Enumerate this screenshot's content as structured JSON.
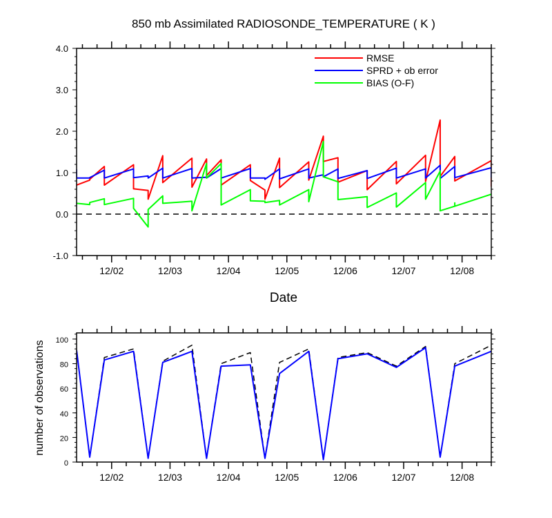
{
  "chart_data": [
    {
      "type": "line",
      "title": "850 mb Assimilated RADIOSONDE_TEMPERATURE ( K )",
      "xlabel": "Date",
      "ylabel": "",
      "ylim": [
        -1.0,
        4.0
      ],
      "yticks": [
        "-1.0",
        "0.0",
        "1.0",
        "2.0",
        "3.0",
        "4.0"
      ],
      "xlim": [
        1.4,
        8.5
      ],
      "xtick_positions": [
        2,
        3,
        4,
        5,
        6,
        7,
        8
      ],
      "xtick_labels": [
        "12/02",
        "12/03",
        "12/04",
        "12/05",
        "12/06",
        "12/07",
        "12/08"
      ],
      "reference_line": {
        "y": 0.0,
        "style": "dashed",
        "color": "#000000"
      },
      "legend": {
        "placement": "top-right"
      },
      "series": [
        {
          "name": "RMSE",
          "color": "#ff0000",
          "points": [
            [
              1.4,
              0.7
            ],
            [
              1.625,
              0.82
            ],
            [
              1.625,
              0.84
            ],
            [
              1.875,
              1.15
            ],
            [
              1.875,
              0.7
            ],
            [
              2.375,
              1.19
            ],
            [
              2.375,
              0.61
            ],
            [
              2.625,
              0.57
            ],
            [
              2.625,
              0.36
            ],
            [
              2.875,
              1.41
            ],
            [
              2.875,
              0.76
            ],
            [
              3.375,
              1.35
            ],
            [
              3.375,
              0.65
            ],
            [
              3.625,
              1.33
            ],
            [
              3.625,
              0.93
            ],
            [
              3.875,
              1.31
            ],
            [
              3.875,
              0.7
            ],
            [
              4.375,
              1.19
            ],
            [
              4.375,
              0.81
            ],
            [
              4.625,
              0.58
            ],
            [
              4.625,
              0.36
            ],
            [
              4.875,
              1.35
            ],
            [
              4.875,
              0.64
            ],
            [
              5.375,
              1.26
            ],
            [
              5.375,
              0.82
            ],
            [
              5.625,
              1.88
            ],
            [
              5.625,
              1.27
            ],
            [
              5.875,
              1.36
            ],
            [
              5.875,
              0.77
            ],
            [
              6.375,
              1.05
            ],
            [
              6.375,
              0.59
            ],
            [
              6.875,
              1.27
            ],
            [
              6.875,
              0.73
            ],
            [
              7.375,
              1.42
            ],
            [
              7.375,
              0.79
            ],
            [
              7.625,
              2.27
            ],
            [
              7.625,
              0.91
            ],
            [
              7.875,
              1.39
            ],
            [
              7.875,
              0.8
            ],
            [
              8.5,
              1.29
            ],
            [
              8.5,
              0.66
            ]
          ]
        },
        {
          "name": "SPRD + ob error",
          "color": "#0000ff",
          "points": [
            [
              1.4,
              1.08
            ],
            [
              1.4,
              0.87
            ],
            [
              1.625,
              0.87
            ],
            [
              1.625,
              0.88
            ],
            [
              1.875,
              1.06
            ],
            [
              1.875,
              0.87
            ],
            [
              2.375,
              1.09
            ],
            [
              2.375,
              0.88
            ],
            [
              2.625,
              0.92
            ],
            [
              2.625,
              0.87
            ],
            [
              2.875,
              1.11
            ],
            [
              2.875,
              0.87
            ],
            [
              3.375,
              1.1
            ],
            [
              3.375,
              0.87
            ],
            [
              3.625,
              0.89
            ],
            [
              3.625,
              0.87
            ],
            [
              3.875,
              1.1
            ],
            [
              3.875,
              0.87
            ],
            [
              4.375,
              1.1
            ],
            [
              4.375,
              0.87
            ],
            [
              4.625,
              0.87
            ],
            [
              4.625,
              0.84
            ],
            [
              4.875,
              1.09
            ],
            [
              4.875,
              0.85
            ],
            [
              5.375,
              1.09
            ],
            [
              5.375,
              0.87
            ],
            [
              5.625,
              0.95
            ],
            [
              5.625,
              0.9
            ],
            [
              5.875,
              1.09
            ],
            [
              5.875,
              0.86
            ],
            [
              6.375,
              1.05
            ],
            [
              6.375,
              0.86
            ],
            [
              6.875,
              1.11
            ],
            [
              6.875,
              0.87
            ],
            [
              7.375,
              1.09
            ],
            [
              7.375,
              0.87
            ],
            [
              7.625,
              1.18
            ],
            [
              7.625,
              0.86
            ],
            [
              7.875,
              1.15
            ],
            [
              7.875,
              0.88
            ],
            [
              8.5,
              1.12
            ],
            [
              8.5,
              0.88
            ]
          ]
        },
        {
          "name": "BIAS (O-F)",
          "color": "#00ff00",
          "points": [
            [
              1.4,
              0.26
            ],
            [
              1.625,
              0.23
            ],
            [
              1.625,
              0.28
            ],
            [
              1.875,
              0.37
            ],
            [
              1.875,
              0.23
            ],
            [
              2.375,
              0.38
            ],
            [
              2.375,
              0.14
            ],
            [
              2.625,
              -0.31
            ],
            [
              2.625,
              0.11
            ],
            [
              2.875,
              0.44
            ],
            [
              2.875,
              0.26
            ],
            [
              3.375,
              0.31
            ],
            [
              3.375,
              0.08
            ],
            [
              3.625,
              1.22
            ],
            [
              3.625,
              0.87
            ],
            [
              3.875,
              1.22
            ],
            [
              3.875,
              0.22
            ],
            [
              4.375,
              0.59
            ],
            [
              4.375,
              0.32
            ],
            [
              4.625,
              0.31
            ],
            [
              4.625,
              0.28
            ],
            [
              4.875,
              0.33
            ],
            [
              4.875,
              0.22
            ],
            [
              5.375,
              0.59
            ],
            [
              5.375,
              0.3
            ],
            [
              5.625,
              1.75
            ],
            [
              5.625,
              0.9
            ],
            [
              5.875,
              0.78
            ],
            [
              5.875,
              0.35
            ],
            [
              6.375,
              0.42
            ],
            [
              6.375,
              0.16
            ],
            [
              6.875,
              0.51
            ],
            [
              6.875,
              0.17
            ],
            [
              7.375,
              0.76
            ],
            [
              7.375,
              0.36
            ],
            [
              7.625,
              1.04
            ],
            [
              7.625,
              0.08
            ],
            [
              7.875,
              0.19
            ],
            [
              7.875,
              0.27
            ],
            [
              7.875,
              0.19
            ],
            [
              8.5,
              0.48
            ]
          ]
        }
      ]
    },
    {
      "type": "line",
      "title": "",
      "xlabel": "",
      "ylabel": "number of observations",
      "ylim": [
        0,
        105
      ],
      "yticks": [
        "0",
        "20",
        "40",
        "60",
        "80",
        "100"
      ],
      "xlim": [
        1.4,
        8.5
      ],
      "xtick_positions": [
        2,
        3,
        4,
        5,
        6,
        7,
        8
      ],
      "xtick_labels": [
        "12/02",
        "12/03",
        "12/04",
        "12/05",
        "12/06",
        "12/07",
        "12/08"
      ],
      "series": [
        {
          "color": "#0000ff",
          "style": "solid",
          "x": [
            1.4,
            1.625,
            1.875,
            2.375,
            2.625,
            2.875,
            3.375,
            3.625,
            3.875,
            4.375,
            4.625,
            4.875,
            5.375,
            5.625,
            5.875,
            6.375,
            6.875,
            7.375,
            7.625,
            7.875,
            8.5
          ],
          "y": [
            91,
            4,
            83,
            90,
            3,
            81,
            90,
            3,
            78,
            79,
            3,
            72,
            90,
            2,
            84,
            88,
            77,
            93,
            4,
            78,
            90
          ]
        },
        {
          "color": "#000000",
          "style": "dashed",
          "x": [
            1.4,
            1.625,
            1.875,
            2.375,
            2.625,
            2.875,
            3.375,
            3.625,
            3.875,
            4.375,
            4.625,
            4.875,
            5.375,
            5.625,
            5.875,
            6.375,
            6.875,
            7.375,
            7.625,
            7.875,
            8.5
          ],
          "y": [
            91,
            4,
            85,
            92,
            3,
            82,
            95,
            3,
            80,
            89,
            3,
            81,
            92,
            2,
            85,
            89,
            78,
            94,
            4,
            80,
            95
          ]
        }
      ]
    }
  ]
}
